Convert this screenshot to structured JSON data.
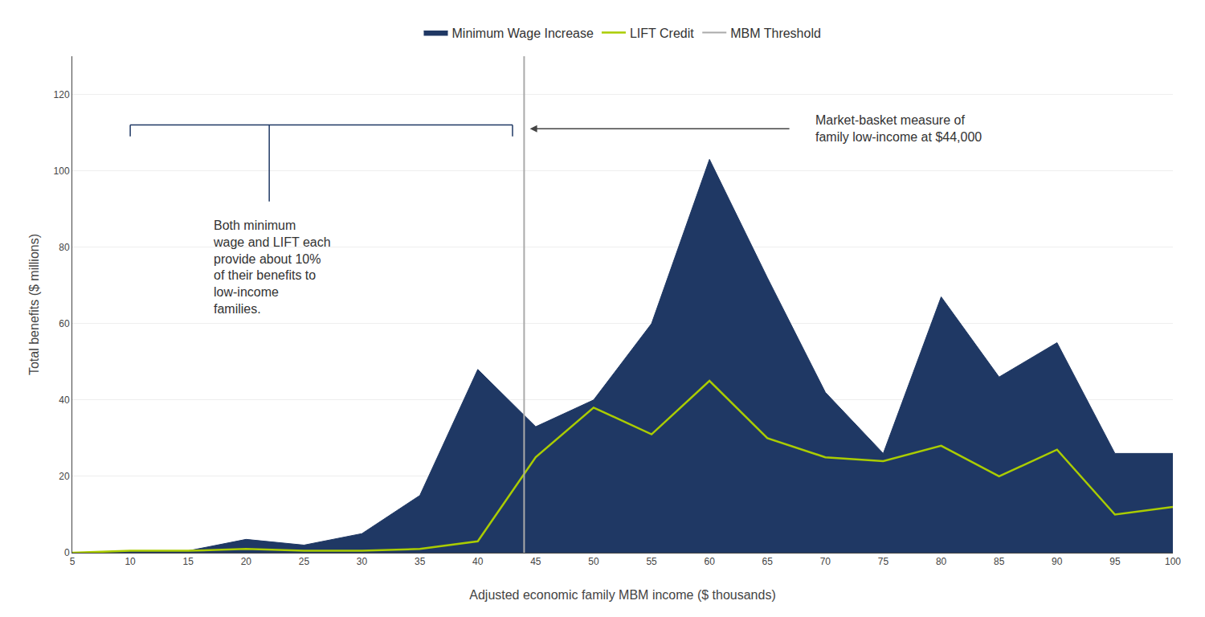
{
  "chart_data": {
    "type": "line",
    "xlabel": "Adjusted economic family MBM income ($ thousands)",
    "ylabel": "Total benefits ($ millions)",
    "x": [
      5,
      10,
      15,
      20,
      25,
      30,
      35,
      40,
      45,
      50,
      55,
      60,
      65,
      70,
      75,
      80,
      85,
      90,
      95,
      100
    ],
    "series": [
      {
        "name": "Minimum Wage Increase",
        "type": "area",
        "color": "#1f3864",
        "values": [
          0,
          0.5,
          0.5,
          3.5,
          2,
          5,
          15,
          48,
          33,
          40,
          60,
          103,
          72,
          42,
          26,
          67,
          46,
          55,
          26,
          26
        ]
      },
      {
        "name": "LIFT Credit",
        "type": "line",
        "color": "#aacc00",
        "values": [
          0,
          0.5,
          0.5,
          1,
          0.5,
          0.5,
          1,
          3,
          25,
          38,
          31,
          45,
          30,
          25,
          24,
          28,
          20,
          27,
          10,
          12
        ]
      }
    ],
    "reference_line": {
      "name": "MBM Threshold",
      "x": 44,
      "color": "#aaaaaa"
    },
    "note": "Both minimum\nwage and LIFT each\nprovide about 10%\nof their benefits to\nlow-income\nfamilies.",
    "arrow_text": "Market-basket measure of\nfamily low-income at $44,000",
    "bracket_color": "#1f3864",
    "xlim": [
      5,
      100
    ],
    "ylim": [
      0,
      130
    ],
    "xticks": [
      5,
      10,
      15,
      20,
      25,
      30,
      35,
      40,
      45,
      50,
      55,
      60,
      65,
      70,
      75,
      80,
      85,
      90,
      95,
      100
    ],
    "yticks": [
      0,
      20,
      40,
      60,
      80,
      100,
      120
    ],
    "grid": "y",
    "legend": "top"
  }
}
